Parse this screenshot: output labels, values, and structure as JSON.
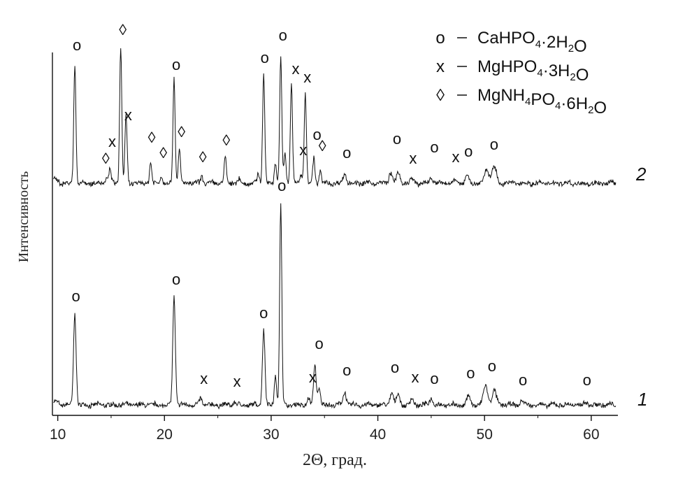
{
  "chart_data": {
    "type": "line",
    "xlabel": "2Θ, град.",
    "ylabel": "Интенсивность",
    "xlim": [
      9.5,
      62.5
    ],
    "xticks": [
      10,
      20,
      30,
      40,
      50,
      60
    ],
    "grid": false,
    "legend_position": "top-right",
    "legend": [
      {
        "symbol": "o",
        "formula": [
          [
            "CaHPO",
            ""
          ],
          [
            "4",
            "sub"
          ],
          [
            "·2H",
            ""
          ],
          [
            "2",
            "sub"
          ],
          [
            "O",
            ""
          ]
        ]
      },
      {
        "symbol": "x",
        "formula": [
          [
            "MgHPO",
            ""
          ],
          [
            "4",
            "sub"
          ],
          [
            "·3H",
            ""
          ],
          [
            "2",
            "sub"
          ],
          [
            "O",
            ""
          ]
        ]
      },
      {
        "symbol": "◊",
        "formula": [
          [
            "MgNH",
            ""
          ],
          [
            "4",
            "sub"
          ],
          [
            "PO",
            ""
          ],
          [
            "4",
            "sub"
          ],
          [
            "·6H",
            ""
          ],
          [
            "2",
            "sub"
          ],
          [
            "O",
            ""
          ]
        ]
      }
    ],
    "series": [
      {
        "name": "1",
        "peaks": [
          {
            "x": 11.6,
            "h": 0.66,
            "w": 0.12
          },
          {
            "x": 20.9,
            "h": 0.78,
            "w": 0.12
          },
          {
            "x": 23.4,
            "h": 0.05,
            "w": 0.12
          },
          {
            "x": 26.6,
            "h": 0.02,
            "w": 0.12
          },
          {
            "x": 29.3,
            "h": 0.54,
            "w": 0.12
          },
          {
            "x": 30.4,
            "h": 0.22,
            "w": 0.1
          },
          {
            "x": 30.9,
            "h": 1.45,
            "w": 0.1
          },
          {
            "x": 33.5,
            "h": 0.05,
            "w": 0.1
          },
          {
            "x": 34.1,
            "h": 0.29,
            "w": 0.12
          },
          {
            "x": 34.5,
            "h": 0.12,
            "w": 0.12
          },
          {
            "x": 36.9,
            "h": 0.09,
            "w": 0.15
          },
          {
            "x": 41.3,
            "h": 0.09,
            "w": 0.15
          },
          {
            "x": 41.9,
            "h": 0.08,
            "w": 0.15
          },
          {
            "x": 43.2,
            "h": 0.04,
            "w": 0.15
          },
          {
            "x": 45.0,
            "h": 0.05,
            "w": 0.15
          },
          {
            "x": 48.5,
            "h": 0.07,
            "w": 0.15
          },
          {
            "x": 50.1,
            "h": 0.14,
            "w": 0.2
          },
          {
            "x": 50.9,
            "h": 0.1,
            "w": 0.2
          },
          {
            "x": 53.5,
            "h": 0.03,
            "w": 0.15
          },
          {
            "x": 59.5,
            "h": 0.02,
            "w": 0.15
          }
        ],
        "markers": [
          {
            "x": 11.7,
            "sym": "o",
            "y": 0.74
          },
          {
            "x": 21.1,
            "sym": "o",
            "y": 0.86
          },
          {
            "x": 23.7,
            "sym": "x",
            "y": 0.15
          },
          {
            "x": 26.8,
            "sym": "x",
            "y": 0.13
          },
          {
            "x": 29.3,
            "sym": "o",
            "y": 0.62
          },
          {
            "x": 31.0,
            "sym": "o",
            "y": 1.53
          },
          {
            "x": 33.9,
            "sym": "x",
            "y": 0.16
          },
          {
            "x": 34.5,
            "sym": "o",
            "y": 0.4
          },
          {
            "x": 37.1,
            "sym": "o",
            "y": 0.21
          },
          {
            "x": 41.6,
            "sym": "o",
            "y": 0.23
          },
          {
            "x": 43.5,
            "sym": "x",
            "y": 0.16
          },
          {
            "x": 45.3,
            "sym": "o",
            "y": 0.15
          },
          {
            "x": 48.7,
            "sym": "o",
            "y": 0.19
          },
          {
            "x": 50.7,
            "sym": "o",
            "y": 0.24
          },
          {
            "x": 53.6,
            "sym": "o",
            "y": 0.14
          },
          {
            "x": 59.6,
            "sym": "o",
            "y": 0.14
          }
        ]
      },
      {
        "name": "2",
        "peaks": [
          {
            "x": 11.6,
            "h": 0.86,
            "w": 0.1
          },
          {
            "x": 14.6,
            "h": 0.04,
            "w": 0.1
          },
          {
            "x": 14.9,
            "h": 0.1,
            "w": 0.1
          },
          {
            "x": 15.9,
            "h": 0.98,
            "w": 0.1
          },
          {
            "x": 16.4,
            "h": 0.48,
            "w": 0.1
          },
          {
            "x": 18.7,
            "h": 0.15,
            "w": 0.1
          },
          {
            "x": 19.7,
            "h": 0.06,
            "w": 0.1
          },
          {
            "x": 20.9,
            "h": 0.76,
            "w": 0.1
          },
          {
            "x": 21.4,
            "h": 0.24,
            "w": 0.1
          },
          {
            "x": 23.5,
            "h": 0.05,
            "w": 0.1
          },
          {
            "x": 25.7,
            "h": 0.19,
            "w": 0.1
          },
          {
            "x": 27.0,
            "h": 0.03,
            "w": 0.1
          },
          {
            "x": 28.8,
            "h": 0.07,
            "w": 0.1
          },
          {
            "x": 29.3,
            "h": 0.79,
            "w": 0.1
          },
          {
            "x": 30.4,
            "h": 0.15,
            "w": 0.1
          },
          {
            "x": 30.9,
            "h": 0.9,
            "w": 0.1
          },
          {
            "x": 31.3,
            "h": 0.2,
            "w": 0.1
          },
          {
            "x": 31.9,
            "h": 0.72,
            "w": 0.1
          },
          {
            "x": 32.8,
            "h": 0.06,
            "w": 0.1
          },
          {
            "x": 33.2,
            "h": 0.65,
            "w": 0.1
          },
          {
            "x": 34.0,
            "h": 0.18,
            "w": 0.1
          },
          {
            "x": 34.6,
            "h": 0.09,
            "w": 0.1
          },
          {
            "x": 36.9,
            "h": 0.07,
            "w": 0.15
          },
          {
            "x": 41.2,
            "h": 0.08,
            "w": 0.15
          },
          {
            "x": 41.9,
            "h": 0.08,
            "w": 0.15
          },
          {
            "x": 43.2,
            "h": 0.03,
            "w": 0.15
          },
          {
            "x": 45.0,
            "h": 0.04,
            "w": 0.15
          },
          {
            "x": 47.3,
            "h": 0.03,
            "w": 0.15
          },
          {
            "x": 48.4,
            "h": 0.06,
            "w": 0.15
          },
          {
            "x": 50.2,
            "h": 0.1,
            "w": 0.2
          },
          {
            "x": 50.9,
            "h": 0.12,
            "w": 0.2
          }
        ],
        "markers": [
          {
            "x": 11.8,
            "sym": "o",
            "y": 0.95
          },
          {
            "x": 14.5,
            "sym": "◊",
            "y": 0.14
          },
          {
            "x": 15.1,
            "sym": "x",
            "y": 0.26
          },
          {
            "x": 16.1,
            "sym": "◊",
            "y": 1.06
          },
          {
            "x": 16.6,
            "sym": "x",
            "y": 0.45
          },
          {
            "x": 18.8,
            "sym": "◊",
            "y": 0.29
          },
          {
            "x": 19.9,
            "sym": "◊",
            "y": 0.18
          },
          {
            "x": 21.1,
            "sym": "o",
            "y": 0.81
          },
          {
            "x": 21.6,
            "sym": "◊",
            "y": 0.33
          },
          {
            "x": 23.6,
            "sym": "◊",
            "y": 0.15
          },
          {
            "x": 25.8,
            "sym": "◊",
            "y": 0.27
          },
          {
            "x": 29.4,
            "sym": "o",
            "y": 0.86
          },
          {
            "x": 31.1,
            "sym": "o",
            "y": 1.02
          },
          {
            "x": 32.3,
            "sym": "x",
            "y": 0.78
          },
          {
            "x": 33.4,
            "sym": "x",
            "y": 0.72
          },
          {
            "x": 33.0,
            "sym": "x",
            "y": 0.2
          },
          {
            "x": 34.3,
            "sym": "o",
            "y": 0.31
          },
          {
            "x": 34.8,
            "sym": "◊",
            "y": 0.23
          },
          {
            "x": 37.1,
            "sym": "o",
            "y": 0.18
          },
          {
            "x": 41.8,
            "sym": "o",
            "y": 0.28
          },
          {
            "x": 43.3,
            "sym": "x",
            "y": 0.14
          },
          {
            "x": 45.3,
            "sym": "o",
            "y": 0.22
          },
          {
            "x": 47.3,
            "sym": "x",
            "y": 0.15
          },
          {
            "x": 48.5,
            "sym": "o",
            "y": 0.19
          },
          {
            "x": 50.9,
            "sym": "o",
            "y": 0.24
          }
        ]
      }
    ]
  }
}
